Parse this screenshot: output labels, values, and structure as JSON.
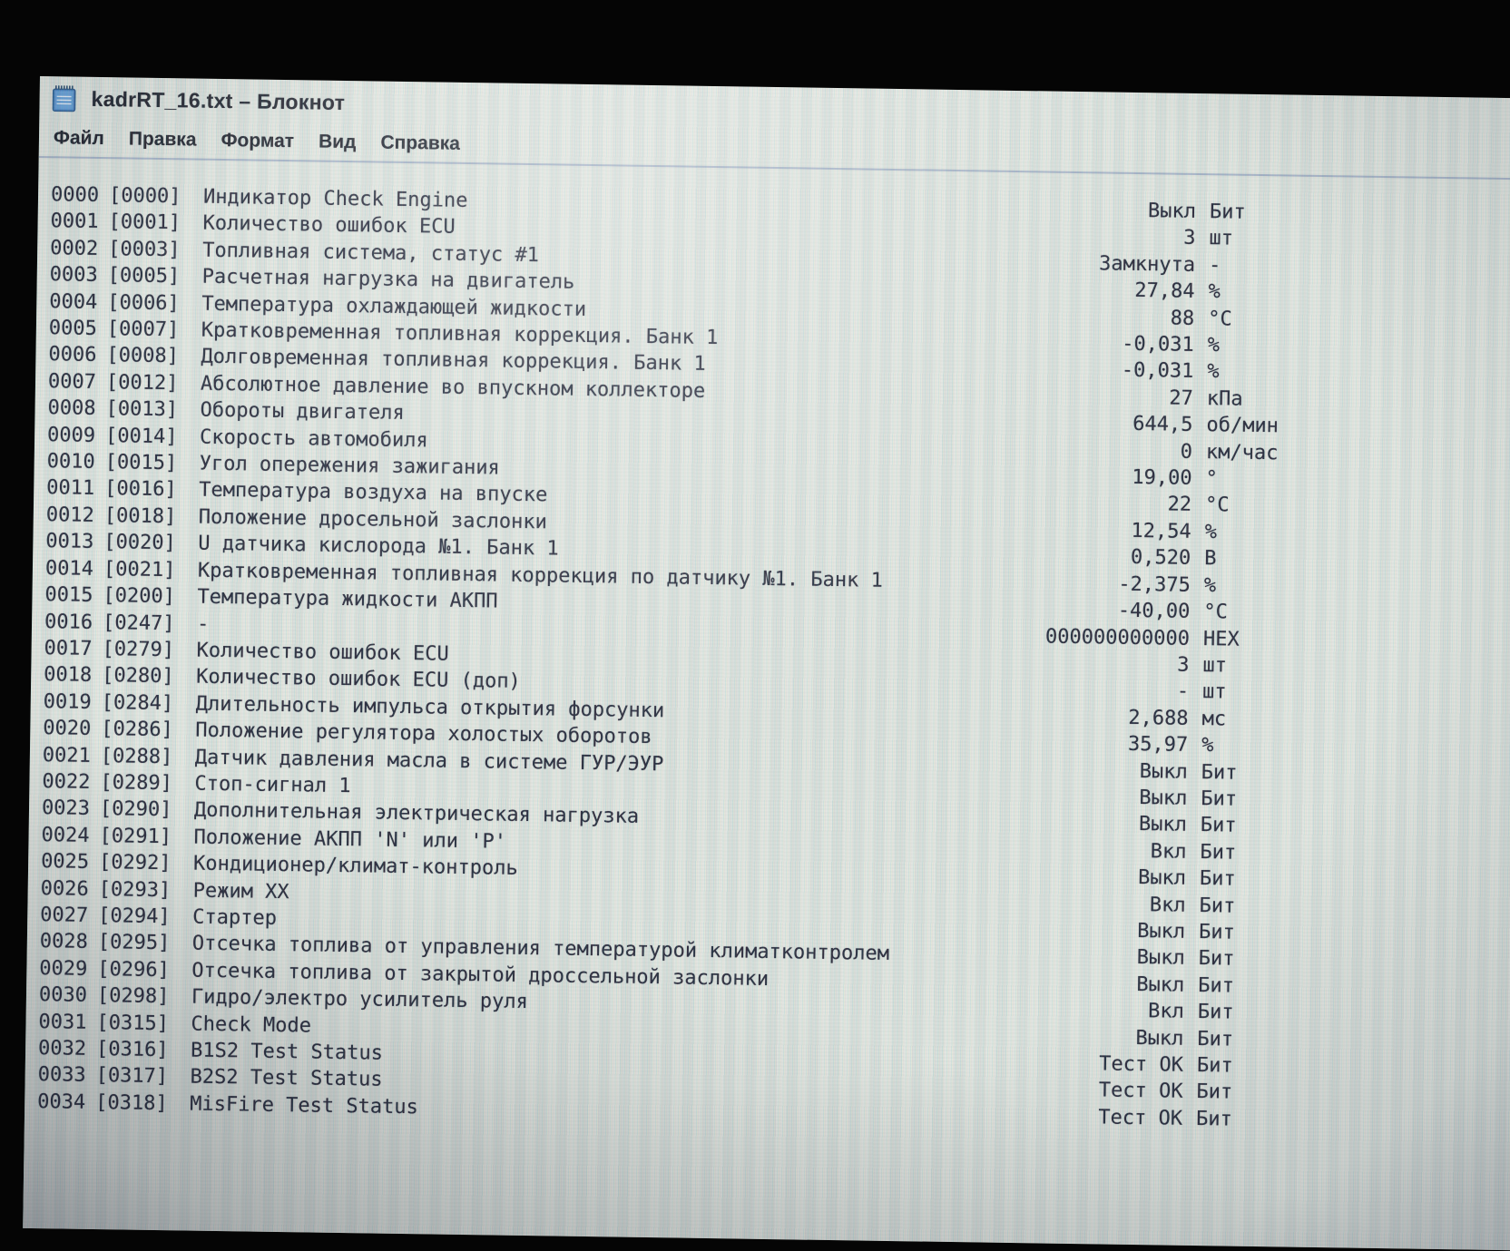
{
  "window": {
    "title": "kadrRT_16.txt – Блокнот"
  },
  "menu": {
    "items": [
      "Файл",
      "Правка",
      "Формат",
      "Вид",
      "Справка"
    ]
  },
  "document": {
    "rows": [
      {
        "num": "0000",
        "code": "[0000]",
        "name": "Индикатор Check Engine",
        "value": "Выкл",
        "unit": "Бит"
      },
      {
        "num": "0001",
        "code": "[0001]",
        "name": "Количество ошибок ECU",
        "value": "3",
        "unit": "шт"
      },
      {
        "num": "0002",
        "code": "[0003]",
        "name": "Топливная система, статус #1",
        "value": "Замкнута",
        "unit": "-"
      },
      {
        "num": "0003",
        "code": "[0005]",
        "name": "Расчетная нагрузка на двигатель",
        "value": "27,84",
        "unit": "%"
      },
      {
        "num": "0004",
        "code": "[0006]",
        "name": "Температура охлаждающей жидкости",
        "value": "88",
        "unit": "°C"
      },
      {
        "num": "0005",
        "code": "[0007]",
        "name": "Кратковременная топливная коррекция. Банк 1",
        "value": "-0,031",
        "unit": "%"
      },
      {
        "num": "0006",
        "code": "[0008]",
        "name": "Долговременная топливная коррекция. Банк 1",
        "value": "-0,031",
        "unit": "%"
      },
      {
        "num": "0007",
        "code": "[0012]",
        "name": "Абсолютное давление во впускном коллекторе",
        "value": "27",
        "unit": "кПа"
      },
      {
        "num": "0008",
        "code": "[0013]",
        "name": "Обороты двигателя",
        "value": "644,5",
        "unit": "об/мин"
      },
      {
        "num": "0009",
        "code": "[0014]",
        "name": "Скорость автомобиля",
        "value": "0",
        "unit": "км/час"
      },
      {
        "num": "0010",
        "code": "[0015]",
        "name": "Угол опережения зажигания",
        "value": "19,00",
        "unit": "°"
      },
      {
        "num": "0011",
        "code": "[0016]",
        "name": "Температура воздуха на впуске",
        "value": "22",
        "unit": "°C"
      },
      {
        "num": "0012",
        "code": "[0018]",
        "name": "Положение дросельной заслонки",
        "value": "12,54",
        "unit": "%"
      },
      {
        "num": "0013",
        "code": "[0020]",
        "name": "U датчика кислорода №1. Банк 1",
        "value": "0,520",
        "unit": "В"
      },
      {
        "num": "0014",
        "code": "[0021]",
        "name": "Кратковременная топливная коррекция по датчику №1. Банк 1",
        "value": "-2,375",
        "unit": "%"
      },
      {
        "num": "0015",
        "code": "[0200]",
        "name": "Температура жидкости АКПП",
        "value": "-40,00",
        "unit": "°C"
      },
      {
        "num": "0016",
        "code": "[0247]",
        "name": "-",
        "value": "000000000000",
        "unit": "HEX"
      },
      {
        "num": "0017",
        "code": "[0279]",
        "name": "Количество ошибок ECU",
        "value": "3",
        "unit": "шт"
      },
      {
        "num": "0018",
        "code": "[0280]",
        "name": "Количество ошибок ECU (доп)",
        "value": "-",
        "unit": "шт"
      },
      {
        "num": "0019",
        "code": "[0284]",
        "name": "Длительность импульса открытия форсунки",
        "value": "2,688",
        "unit": "мс"
      },
      {
        "num": "0020",
        "code": "[0286]",
        "name": "Положение регулятора холостых оборотов",
        "value": "35,97",
        "unit": "%"
      },
      {
        "num": "0021",
        "code": "[0288]",
        "name": "Датчик давления масла в системе ГУР/ЭУР",
        "value": "Выкл",
        "unit": "Бит"
      },
      {
        "num": "0022",
        "code": "[0289]",
        "name": "Стоп-сигнал 1",
        "value": "Выкл",
        "unit": "Бит"
      },
      {
        "num": "0023",
        "code": "[0290]",
        "name": "Дополнительная электрическая нагрузка",
        "value": "Выкл",
        "unit": "Бит"
      },
      {
        "num": "0024",
        "code": "[0291]",
        "name": "Положение АКПП 'N' или 'P'",
        "value": "Вкл",
        "unit": "Бит"
      },
      {
        "num": "0025",
        "code": "[0292]",
        "name": "Кондиционер/климат-контроль",
        "value": "Выкл",
        "unit": "Бит"
      },
      {
        "num": "0026",
        "code": "[0293]",
        "name": "Режим XX",
        "value": "Вкл",
        "unit": "Бит"
      },
      {
        "num": "0027",
        "code": "[0294]",
        "name": "Стартер",
        "value": "Выкл",
        "unit": "Бит"
      },
      {
        "num": "0028",
        "code": "[0295]",
        "name": "Отсечка топлива от управления температурой климатконтролем",
        "value": "Выкл",
        "unit": "Бит"
      },
      {
        "num": "0029",
        "code": "[0296]",
        "name": "Отсечка топлива от закрытой дроссельной заслонки",
        "value": "Выкл",
        "unit": "Бит"
      },
      {
        "num": "0030",
        "code": "[0298]",
        "name": "Гидро/электро усилитель руля",
        "value": "Вкл",
        "unit": "Бит"
      },
      {
        "num": "0031",
        "code": "[0315]",
        "name": "Check Mode",
        "value": "Выкл",
        "unit": "Бит"
      },
      {
        "num": "0032",
        "code": "[0316]",
        "name": "B1S2 Test Status",
        "value": "Тест ОК",
        "unit": "Бит"
      },
      {
        "num": "0033",
        "code": "[0317]",
        "name": "B2S2 Test Status",
        "value": "Тест ОК",
        "unit": "Бит"
      },
      {
        "num": "0034",
        "code": "[0318]",
        "name": "MisFire Test Status",
        "value": "Тест ОК",
        "unit": "Бит"
      }
    ]
  }
}
